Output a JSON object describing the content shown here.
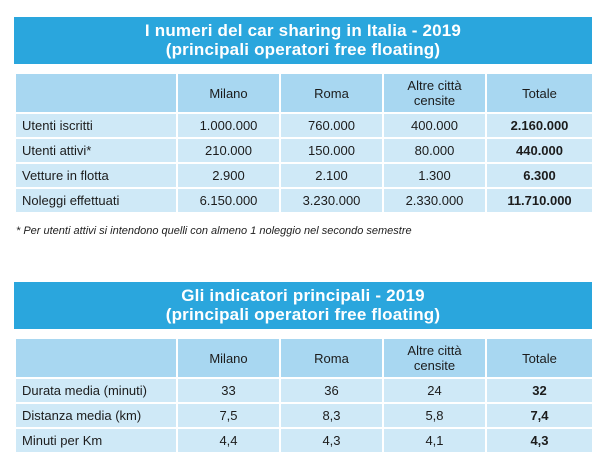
{
  "table1": {
    "title_line1": "I numeri del car sharing in Italia - 2019",
    "title_line2": "(principali operatori free floating)",
    "headers": [
      "",
      "Milano",
      "Roma",
      "Altre città censite",
      "Totale"
    ],
    "rows": [
      [
        "Utenti iscritti",
        "1.000.000",
        "760.000",
        "400.000",
        "2.160.000"
      ],
      [
        "Utenti attivi*",
        "210.000",
        "150.000",
        "80.000",
        "440.000"
      ],
      [
        "Vetture in flotta",
        "2.900",
        "2.100",
        "1.300",
        "6.300"
      ],
      [
        "Noleggi effettuati",
        "6.150.000",
        "3.230.000",
        "2.330.000",
        "11.710.000"
      ]
    ],
    "footnote": "* Per utenti attivi si intendono quelli con almeno 1 noleggio nel secondo semestre"
  },
  "table2": {
    "title_line1": "Gli indicatori principali - 2019",
    "title_line2": "(principali operatori free floating)",
    "headers": [
      "",
      "Milano",
      "Roma",
      "Altre città censite",
      "Totale"
    ],
    "rows": [
      [
        "Durata media (minuti)",
        "33",
        "36",
        "24",
        "32"
      ],
      [
        "Distanza media (km)",
        "7,5",
        "8,3",
        "5,8",
        "7,4"
      ],
      [
        "Minuti per Km",
        "4,4",
        "4,3",
        "4,1",
        "4,3"
      ]
    ]
  }
}
